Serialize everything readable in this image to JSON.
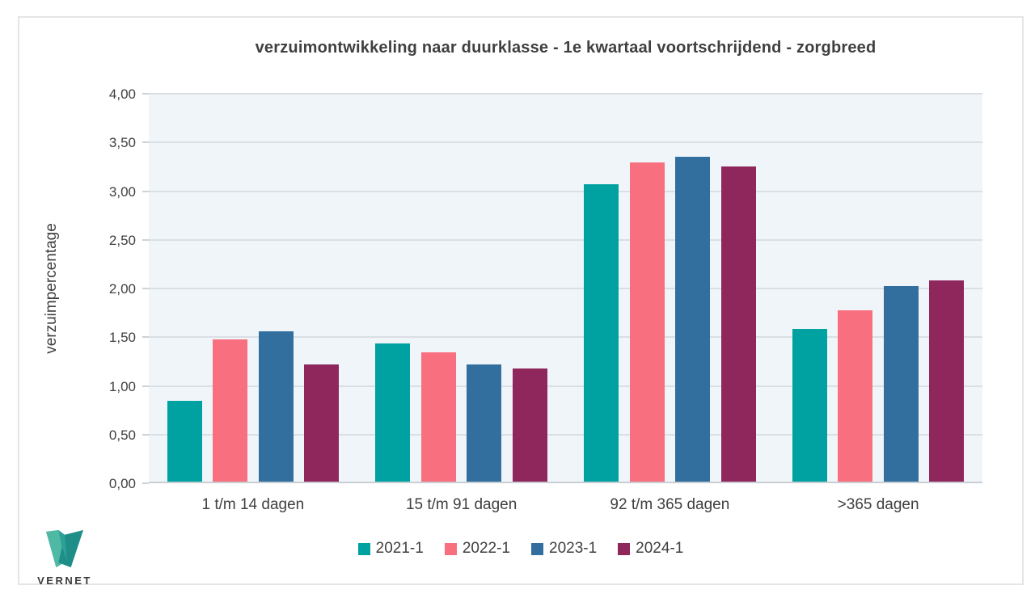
{
  "chart_data": {
    "type": "bar",
    "title": "verzuimontwikkeling naar duurklasse - 1e kwartaal voortschrijdend - zorgbreed",
    "xlabel": "",
    "ylabel": "verzuimpercentage",
    "categories": [
      "1 t/m 14 dagen",
      "15 t/m 91 dagen",
      "92 t/m 365 dagen",
      ">365 dagen"
    ],
    "series": [
      {
        "name": "2021-1",
        "color": "#00A2A1",
        "values": [
          0.83,
          1.42,
          3.05,
          1.57
        ]
      },
      {
        "name": "2022-1",
        "color": "#F8707F",
        "values": [
          1.46,
          1.33,
          3.28,
          1.76
        ]
      },
      {
        "name": "2023-1",
        "color": "#336F9E",
        "values": [
          1.54,
          1.2,
          3.34,
          2.01
        ]
      },
      {
        "name": "2024-1",
        "color": "#8F265C",
        "values": [
          1.2,
          1.16,
          3.24,
          2.07
        ]
      }
    ],
    "ylim": [
      0,
      4
    ],
    "ytick_step": 0.5,
    "ytick_labels": [
      "0,00",
      "0,50",
      "1,00",
      "1,50",
      "2,00",
      "2,50",
      "3,00",
      "3,50",
      "4,00"
    ],
    "grid": true,
    "legend_position": "bottom",
    "plot_bg": "#F0F5F9",
    "grid_color": "#DADFE4",
    "tick_color": "#CDD2D7",
    "text_color": "#404040"
  },
  "logo": {
    "text": "VERNET",
    "color_light": "#4FB9A6",
    "color_mid": "#2FA096",
    "color_dark": "#1F8E89"
  }
}
